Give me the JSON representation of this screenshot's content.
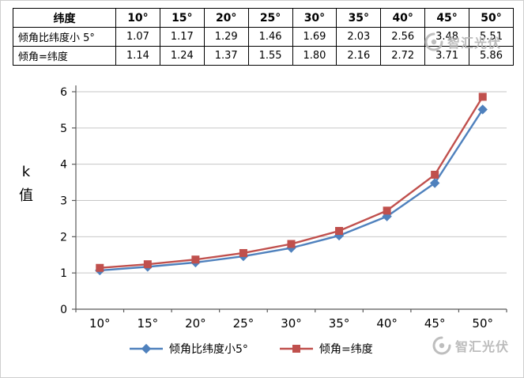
{
  "table": {
    "header": [
      "纬度",
      "10°",
      "15°",
      "20°",
      "25°",
      "30°",
      "35°",
      "40°",
      "45°",
      "50°"
    ],
    "rows": [
      {
        "label": "倾角比纬度小 5°",
        "values": [
          "1.07",
          "1.17",
          "1.29",
          "1.46",
          "1.69",
          "2.03",
          "2.56",
          "3.48",
          "5.51"
        ]
      },
      {
        "label": "倾角=纬度",
        "values": [
          "1.14",
          "1.24",
          "1.37",
          "1.55",
          "1.80",
          "2.16",
          "2.72",
          "3.71",
          "5.86"
        ]
      }
    ]
  },
  "chart_data": {
    "type": "line",
    "categories": [
      "10°",
      "15°",
      "20°",
      "25°",
      "30°",
      "35°",
      "40°",
      "45°",
      "50°"
    ],
    "series": [
      {
        "name": "倾角比纬度小5°",
        "marker": "diamond",
        "color": "#4f81bd",
        "values": [
          1.07,
          1.17,
          1.29,
          1.46,
          1.69,
          2.03,
          2.56,
          3.48,
          5.51
        ]
      },
      {
        "name": "倾角=纬度",
        "marker": "square",
        "color": "#c0504d",
        "values": [
          1.14,
          1.24,
          1.37,
          1.55,
          1.8,
          2.16,
          2.72,
          3.71,
          5.86
        ]
      }
    ],
    "title": "",
    "xlabel": "",
    "ylabel": "k 值",
    "ylim": [
      0,
      6
    ],
    "yticks": [
      0,
      1,
      2,
      3,
      4,
      5,
      6
    ],
    "grid": true,
    "legend_position": "bottom",
    "gridline_color": "#c6c6c6",
    "axis_color": "#595959"
  },
  "watermark": {
    "text": "智汇光伏",
    "color": "#b5b5b5"
  }
}
